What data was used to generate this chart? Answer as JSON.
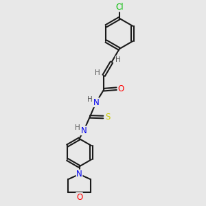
{
  "background_color": "#e8e8e8",
  "bond_color": "#1a1a1a",
  "bond_width": 1.5,
  "atom_colors": {
    "Cl": "#00bb00",
    "O": "#ff0000",
    "N": "#0000ee",
    "S": "#cccc00",
    "H": "#555555",
    "C": "#1a1a1a"
  },
  "font_size": 8.5,
  "font_size_h": 7.5,
  "xlim": [
    0,
    10
  ],
  "ylim": [
    0,
    10
  ]
}
